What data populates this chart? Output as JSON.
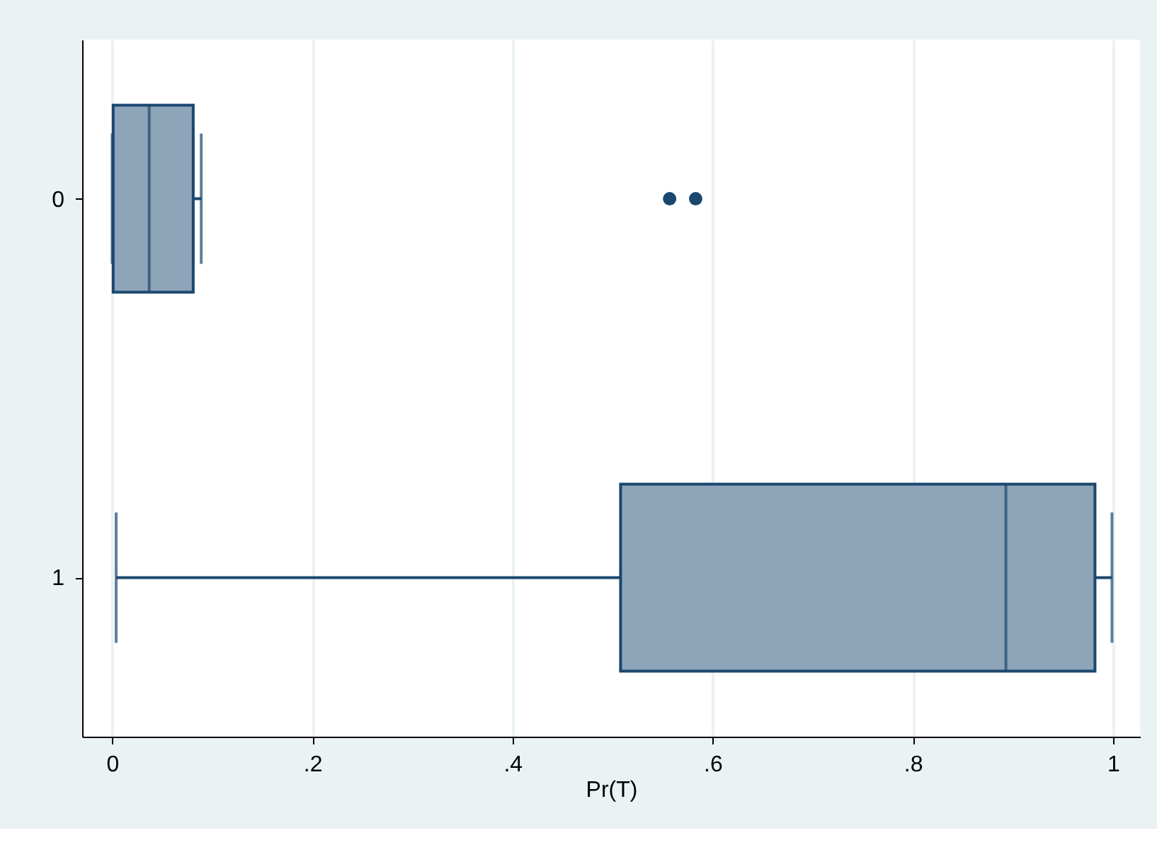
{
  "chart_data": {
    "type": "box",
    "orientation": "horizontal",
    "categories": [
      "0",
      "1"
    ],
    "color": "#8ea4b8",
    "boxes": [
      {
        "low": 0.0,
        "q1": 0.001,
        "median": 0.037,
        "q3": 0.081,
        "high": 0.089,
        "outliers": [
          0.557,
          0.583
        ]
      },
      {
        "low": 0.004,
        "q1": 0.508,
        "median": 0.893,
        "q3": 0.982,
        "high": 0.999
      }
    ],
    "xlabel": "Pr(T)",
    "xlim": [
      -0.03,
      1.027
    ],
    "xticks": [
      0,
      {
        "value": 0.2,
        "label": ".2"
      },
      {
        "value": 0.4,
        "label": ".4"
      },
      {
        "value": 0.6,
        "label": ".6"
      },
      {
        "value": 0.8,
        "label": ".8"
      },
      1
    ],
    "grid": "x",
    "marker": "circle"
  }
}
